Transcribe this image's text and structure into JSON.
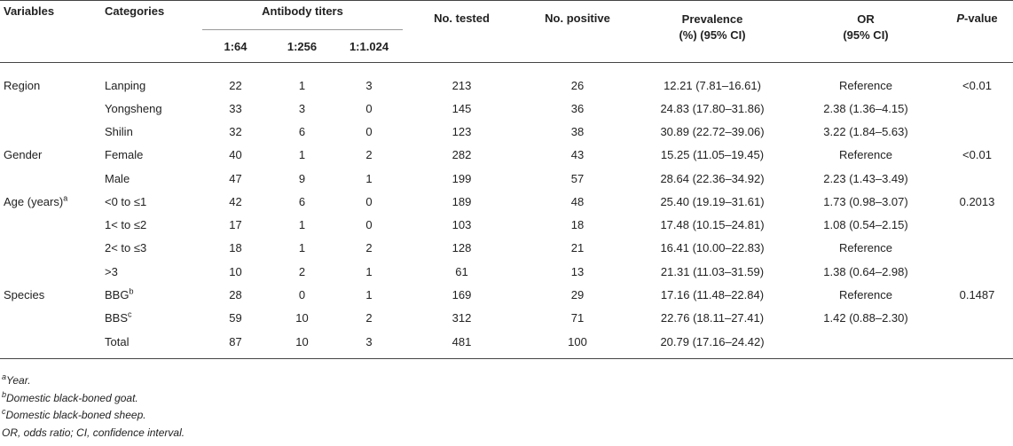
{
  "header": {
    "variables": "Variables",
    "categories": "Categories",
    "antibody_titers": "Antibody titers",
    "titers": [
      "1:64",
      "1:256",
      "1:1.024"
    ],
    "no_tested": "No. tested",
    "no_positive": "No. positive",
    "prevalence_line1": "Prevalence",
    "prevalence_line2": "(%) (95% CI)",
    "or_line1": "OR",
    "or_line2": "(95% CI)",
    "p_value_italic": "P",
    "p_value_rest": "-value"
  },
  "rows": [
    {
      "variable": "Region",
      "category": "Lanping",
      "t64": "22",
      "t256": "1",
      "t1024": "3",
      "tested": "213",
      "positive": "26",
      "prevalence": "12.21 (7.81–16.61)",
      "or": "Reference",
      "p": "<0.01"
    },
    {
      "variable": "",
      "category": "Yongsheng",
      "t64": "33",
      "t256": "3",
      "t1024": "0",
      "tested": "145",
      "positive": "36",
      "prevalence": "24.83 (17.80–31.86)",
      "or": "2.38 (1.36–4.15)",
      "p": ""
    },
    {
      "variable": "",
      "category": "Shilin",
      "t64": "32",
      "t256": "6",
      "t1024": "0",
      "tested": "123",
      "positive": "38",
      "prevalence": "30.89 (22.72–39.06)",
      "or": "3.22 (1.84–5.63)",
      "p": ""
    },
    {
      "variable": "Gender",
      "category": "Female",
      "t64": "40",
      "t256": "1",
      "t1024": "2",
      "tested": "282",
      "positive": "43",
      "prevalence": "15.25 (11.05–19.45)",
      "or": "Reference",
      "p": "<0.01"
    },
    {
      "variable": "",
      "category": "Male",
      "t64": "47",
      "t256": "9",
      "t1024": "1",
      "tested": "199",
      "positive": "57",
      "prevalence": "28.64 (22.36–34.92)",
      "or": "2.23 (1.43–3.49)",
      "p": ""
    },
    {
      "variable": "Age (years)",
      "variable_sup": "a",
      "category": "<0 to ≤1",
      "t64": "42",
      "t256": "6",
      "t1024": "0",
      "tested": "189",
      "positive": "48",
      "prevalence": "25.40 (19.19–31.61)",
      "or": "1.73 (0.98–3.07)",
      "p": "0.2013"
    },
    {
      "variable": "",
      "category": "1< to ≤2",
      "t64": "17",
      "t256": "1",
      "t1024": "0",
      "tested": "103",
      "positive": "18",
      "prevalence": "17.48 (10.15–24.81)",
      "or": "1.08 (0.54–2.15)",
      "p": ""
    },
    {
      "variable": "",
      "category": "2< to ≤3",
      "t64": "18",
      "t256": "1",
      "t1024": "2",
      "tested": "128",
      "positive": "21",
      "prevalence": "16.41 (10.00–22.83)",
      "or": "Reference",
      "p": ""
    },
    {
      "variable": "",
      "category": ">3",
      "t64": "10",
      "t256": "2",
      "t1024": "1",
      "tested": "61",
      "positive": "13",
      "prevalence": "21.31 (11.03–31.59)",
      "or": "1.38 (0.64–2.98)",
      "p": ""
    },
    {
      "variable": "Species",
      "category": "BBG",
      "category_sup": "b",
      "t64": "28",
      "t256": "0",
      "t1024": "1",
      "tested": "169",
      "positive": "29",
      "prevalence": "17.16 (11.48–22.84)",
      "or": "Reference",
      "p": "0.1487"
    },
    {
      "variable": "",
      "category": "BBS",
      "category_sup": "c",
      "t64": "59",
      "t256": "10",
      "t1024": "2",
      "tested": "312",
      "positive": "71",
      "prevalence": "22.76 (18.11–27.41)",
      "or": "1.42 (0.88–2.30)",
      "p": ""
    },
    {
      "variable": "",
      "category": "Total",
      "t64": "87",
      "t256": "10",
      "t1024": "3",
      "tested": "481",
      "positive": "100",
      "prevalence": "20.79 (17.16–24.42)",
      "or": "",
      "p": ""
    }
  ],
  "footnotes": [
    {
      "mark": "a",
      "text": "Year."
    },
    {
      "mark": "b",
      "text": "Domestic black-boned goat."
    },
    {
      "mark": "c",
      "text": "Domestic black-boned sheep."
    },
    {
      "mark": "",
      "text": "OR, odds ratio; CI, confidence interval."
    }
  ]
}
